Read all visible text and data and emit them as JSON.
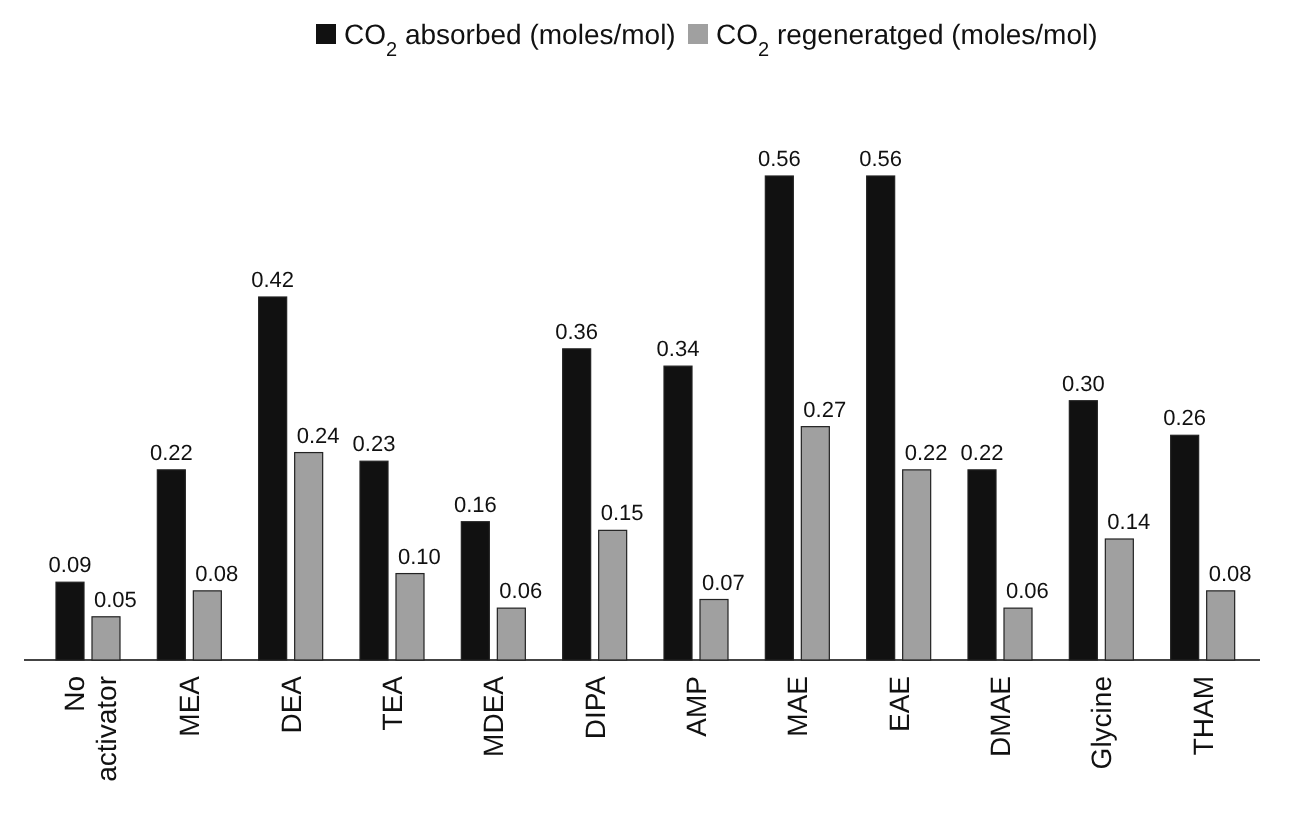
{
  "chart_data": {
    "type": "bar",
    "data_labels": false,
    "legend": "top",
    "categories": [
      "No activator",
      "MEA",
      "DEA",
      "TEA",
      "MDEA",
      "DIPA",
      "AMP",
      "MAE",
      "EAE",
      "DMAE",
      "Glycine",
      "THAM"
    ],
    "series": [
      {
        "name": "CO$_{2}$ absorbed (moles/mol)",
        "color": "#111111",
        "values": [
          0.09,
          0.22,
          0.42,
          0.23,
          0.16,
          0.36,
          0.34,
          0.56,
          0.56,
          0.22,
          0.3,
          0.26
        ],
        "value_labels": [
          "0.09",
          "0.22",
          "0.42",
          "0.23",
          "0.16",
          "0.36",
          "0.34",
          "0.56",
          "0.56",
          "0.22",
          "0.30",
          "0.26"
        ]
      },
      {
        "name": "CO$_{2}$ regeneratged (moles/mol)",
        "color": "#a0a0a0",
        "values": [
          0.05,
          0.08,
          0.24,
          0.1,
          0.06,
          0.15,
          0.07,
          0.27,
          0.22,
          0.06,
          0.14,
          0.08
        ],
        "value_labels": [
          "0.05",
          "0.08",
          "0.24",
          "0.10",
          "0.06",
          "0.15",
          "0.07",
          "0.27",
          "0.22",
          "0.06",
          "0.14",
          "0.08"
        ]
      }
    ]
  }
}
